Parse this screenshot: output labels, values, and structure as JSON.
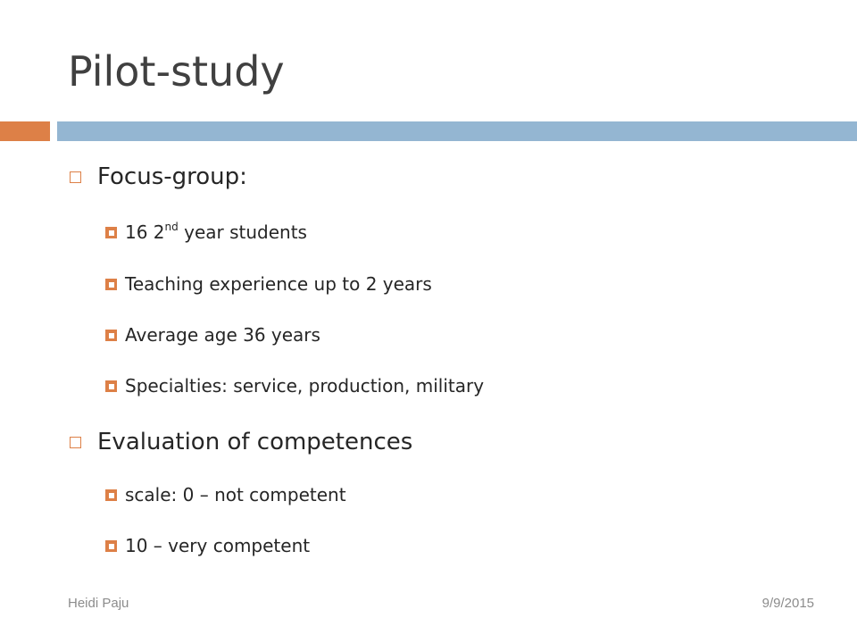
{
  "slide": {
    "title": "Pilot-study"
  },
  "bullets": [
    {
      "text": "Focus-group:",
      "sub": [
        {
          "pre": "16 2",
          "sup": "nd",
          "post": " year students"
        },
        {
          "text": "Teaching experience up to 2 years"
        },
        {
          "text": "Average age 36 years"
        },
        {
          "text": "Specialties: service, production, military"
        }
      ]
    },
    {
      "text": "Evaluation of competences",
      "sub": [
        {
          "text": "scale: 0 – not competent"
        },
        {
          "text": "10 – very competent"
        }
      ]
    }
  ],
  "footer": {
    "author": "Heidi Paju",
    "date": "9/9/2015"
  },
  "colors": {
    "accent": "#dd8047",
    "bar": "#94b6d2"
  },
  "icons": {
    "level1_bullet": "hollow-square-icon",
    "level2_bullet": "filled-square-icon"
  }
}
